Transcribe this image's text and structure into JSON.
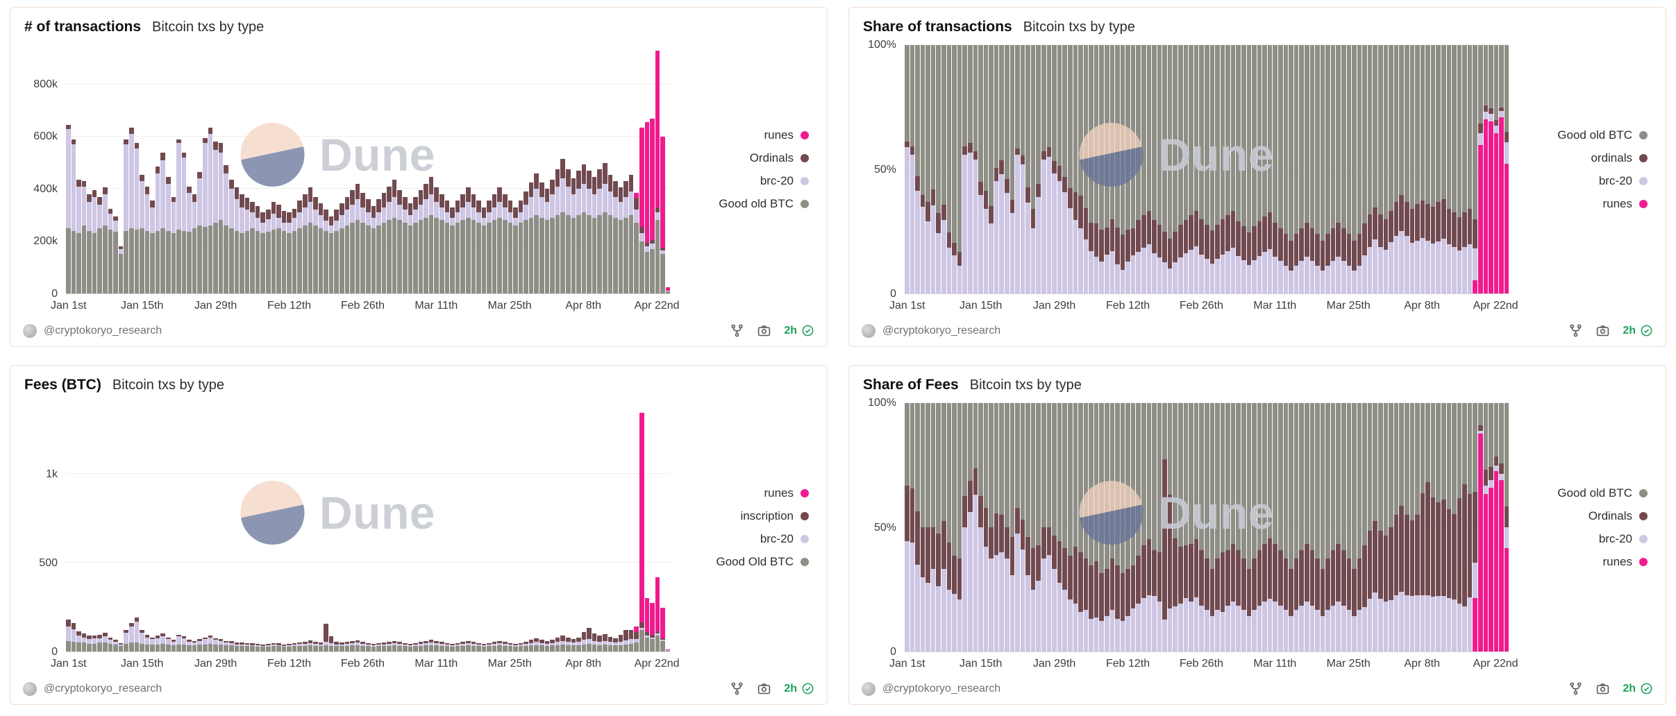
{
  "watermark": {
    "text": "Dune"
  },
  "footer": {
    "handle": "@cryptokoryo_research",
    "age": "2h"
  },
  "colors": {
    "good_old_btc": "#8e8e86",
    "brc20": "#cec6e4",
    "ordinals": "#714a50",
    "inscription": "#714a50",
    "runes": "#f01b8e",
    "panel_border": "#f3ddd1",
    "age_green": "#1ca05a"
  },
  "datasets": {
    "transactions_per_day_thousands": {
      "good_old_btc": [
        250,
        240,
        230,
        260,
        240,
        230,
        250,
        260,
        245,
        235,
        150,
        240,
        250,
        245,
        250,
        240,
        230,
        240,
        250,
        240,
        230,
        245,
        240,
        235,
        250,
        260,
        255,
        260,
        270,
        280,
        260,
        250,
        240,
        230,
        240,
        250,
        240,
        230,
        235,
        245,
        250,
        240,
        230,
        240,
        250,
        260,
        270,
        260,
        250,
        240,
        230,
        240,
        250,
        260,
        270,
        280,
        270,
        260,
        250,
        260,
        270,
        280,
        290,
        280,
        270,
        260,
        270,
        280,
        290,
        300,
        290,
        280,
        270,
        260,
        270,
        280,
        290,
        280,
        270,
        260,
        270,
        280,
        290,
        280,
        270,
        260,
        270,
        280,
        290,
        300,
        290,
        280,
        290,
        300,
        310,
        300,
        290,
        300,
        310,
        300,
        290,
        300,
        310,
        300,
        290,
        280,
        290,
        300,
        270,
        200,
        160,
        170,
        280,
        150,
        8
      ],
      "brc20": [
        380,
        330,
        180,
        150,
        110,
        140,
        90,
        120,
        60,
        45,
        20,
        330,
        360,
        310,
        180,
        140,
        100,
        220,
        260,
        180,
        120,
        330,
        280,
        150,
        100,
        180,
        320,
        350,
        280,
        260,
        200,
        150,
        120,
        100,
        80,
        60,
        50,
        40,
        50,
        60,
        40,
        30,
        40,
        50,
        60,
        70,
        80,
        60,
        50,
        40,
        30,
        40,
        50,
        60,
        70,
        80,
        60,
        50,
        40,
        50,
        60,
        70,
        80,
        60,
        50,
        40,
        50,
        60,
        70,
        80,
        60,
        50,
        40,
        30,
        40,
        50,
        60,
        50,
        40,
        30,
        40,
        50,
        60,
        50,
        40,
        30,
        40,
        60,
        80,
        100,
        80,
        70,
        90,
        110,
        130,
        110,
        90,
        100,
        110,
        100,
        90,
        100,
        110,
        90,
        80,
        70,
        80,
        90,
        50,
        30,
        20,
        20,
        30,
        15,
        2
      ],
      "ordinals": [
        15,
        20,
        25,
        20,
        30,
        25,
        30,
        25,
        20,
        15,
        10,
        20,
        25,
        20,
        25,
        30,
        25,
        25,
        30,
        25,
        20,
        15,
        20,
        25,
        30,
        25,
        20,
        25,
        30,
        35,
        30,
        35,
        45,
        50,
        45,
        40,
        45,
        40,
        35,
        45,
        50,
        45,
        40,
        35,
        45,
        50,
        55,
        50,
        45,
        40,
        35,
        40,
        45,
        50,
        55,
        60,
        55,
        50,
        45,
        50,
        55,
        60,
        65,
        55,
        50,
        45,
        50,
        55,
        60,
        65,
        55,
        50,
        45,
        40,
        45,
        50,
        55,
        50,
        45,
        40,
        45,
        50,
        55,
        50,
        45,
        40,
        45,
        50,
        55,
        60,
        55,
        50,
        55,
        65,
        75,
        65,
        60,
        70,
        75,
        70,
        65,
        75,
        80,
        65,
        60,
        55,
        60,
        65,
        45,
        25,
        15,
        15,
        20,
        10,
        1
      ],
      "runes": [
        0,
        0,
        0,
        0,
        0,
        0,
        0,
        0,
        0,
        0,
        0,
        0,
        0,
        0,
        0,
        0,
        0,
        0,
        0,
        0,
        0,
        0,
        0,
        0,
        0,
        0,
        0,
        0,
        0,
        0,
        0,
        0,
        0,
        0,
        0,
        0,
        0,
        0,
        0,
        0,
        0,
        0,
        0,
        0,
        0,
        0,
        0,
        0,
        0,
        0,
        0,
        0,
        0,
        0,
        0,
        0,
        0,
        0,
        0,
        0,
        0,
        0,
        0,
        0,
        0,
        0,
        0,
        0,
        0,
        0,
        0,
        0,
        0,
        0,
        0,
        0,
        0,
        0,
        0,
        0,
        0,
        0,
        0,
        0,
        0,
        0,
        0,
        0,
        0,
        0,
        0,
        0,
        0,
        0,
        0,
        0,
        0,
        0,
        0,
        0,
        0,
        0,
        0,
        0,
        0,
        0,
        0,
        0,
        20,
        380,
        460,
        465,
        600,
        425,
        12
      ]
    },
    "fees_btc_per_day": {
      "good_old_btc": [
        60,
        55,
        50,
        50,
        45,
        45,
        50,
        50,
        45,
        40,
        30,
        45,
        50,
        50,
        45,
        40,
        40,
        40,
        45,
        40,
        35,
        40,
        40,
        35,
        35,
        40,
        40,
        45,
        40,
        40,
        35,
        35,
        30,
        30,
        30,
        30,
        28,
        28,
        28,
        30,
        30,
        28,
        28,
        30,
        32,
        32,
        34,
        32,
        30,
        35,
        32,
        30,
        30,
        32,
        34,
        35,
        32,
        30,
        28,
        30,
        30,
        32,
        34,
        32,
        30,
        28,
        30,
        32,
        34,
        36,
        34,
        32,
        30,
        28,
        30,
        32,
        34,
        32,
        30,
        28,
        30,
        32,
        34,
        32,
        30,
        28,
        30,
        32,
        34,
        36,
        34,
        32,
        34,
        36,
        38,
        36,
        34,
        36,
        40,
        42,
        38,
        36,
        38,
        36,
        34,
        36,
        40,
        44,
        50,
        120,
        80,
        70,
        90,
        60,
        5
      ],
      "brc20": [
        80,
        70,
        40,
        30,
        25,
        30,
        25,
        35,
        20,
        15,
        10,
        60,
        90,
        120,
        60,
        40,
        30,
        35,
        40,
        30,
        20,
        45,
        35,
        20,
        15,
        20,
        30,
        35,
        25,
        20,
        15,
        12,
        10,
        8,
        8,
        6,
        6,
        5,
        6,
        8,
        6,
        5,
        6,
        8,
        10,
        12,
        14,
        12,
        10,
        20,
        15,
        10,
        10,
        12,
        12,
        14,
        10,
        8,
        6,
        8,
        8,
        10,
        12,
        10,
        8,
        6,
        8,
        10,
        12,
        14,
        12,
        10,
        8,
        6,
        8,
        10,
        12,
        10,
        8,
        6,
        8,
        10,
        12,
        10,
        8,
        6,
        8,
        10,
        14,
        18,
        14,
        12,
        14,
        18,
        22,
        18,
        16,
        18,
        25,
        30,
        22,
        20,
        22,
        18,
        16,
        18,
        22,
        26,
        20,
        15,
        10,
        8,
        10,
        6,
        1
      ],
      "inscription": [
        40,
        35,
        25,
        20,
        20,
        15,
        20,
        20,
        15,
        10,
        8,
        15,
        20,
        20,
        15,
        15,
        10,
        15,
        15,
        10,
        10,
        10,
        10,
        10,
        10,
        10,
        10,
        10,
        10,
        12,
        10,
        10,
        12,
        12,
        10,
        10,
        10,
        8,
        8,
        10,
        10,
        8,
        8,
        8,
        10,
        12,
        14,
        10,
        10,
        100,
        40,
        15,
        12,
        12,
        14,
        15,
        12,
        10,
        8,
        10,
        12,
        12,
        14,
        12,
        10,
        8,
        10,
        12,
        14,
        16,
        14,
        12,
        10,
        8,
        10,
        12,
        14,
        12,
        10,
        8,
        10,
        12,
        14,
        12,
        10,
        8,
        10,
        14,
        18,
        22,
        18,
        16,
        20,
        26,
        32,
        26,
        22,
        26,
        45,
        60,
        40,
        34,
        38,
        30,
        26,
        40,
        60,
        50,
        40,
        30,
        20,
        15,
        15,
        10,
        1
      ],
      "runes": [
        0,
        0,
        0,
        0,
        0,
        0,
        0,
        0,
        0,
        0,
        0,
        0,
        0,
        0,
        0,
        0,
        0,
        0,
        0,
        0,
        0,
        0,
        0,
        0,
        0,
        0,
        0,
        0,
        0,
        0,
        0,
        0,
        0,
        0,
        0,
        0,
        0,
        0,
        0,
        0,
        0,
        0,
        0,
        0,
        0,
        0,
        0,
        0,
        0,
        0,
        0,
        0,
        0,
        0,
        0,
        0,
        0,
        0,
        0,
        0,
        0,
        0,
        0,
        0,
        0,
        0,
        0,
        0,
        0,
        0,
        0,
        0,
        0,
        0,
        0,
        0,
        0,
        0,
        0,
        0,
        0,
        0,
        0,
        0,
        0,
        0,
        0,
        0,
        0,
        0,
        0,
        0,
        0,
        0,
        0,
        0,
        0,
        0,
        0,
        0,
        0,
        0,
        0,
        0,
        0,
        0,
        0,
        0,
        30,
        1180,
        190,
        180,
        305,
        170,
        5
      ]
    }
  },
  "chart_data": [
    {
      "title": "# of transactions",
      "subtitle": "Bitcoin txs by type",
      "type": "bar",
      "stacked": true,
      "normalized": false,
      "unit": "transactions per day (thousands)",
      "dataset": "transactions_per_day_thousands",
      "stack_order": [
        "good_old_btc",
        "brc20",
        "ordinals",
        "runes"
      ],
      "ymax": 950,
      "y_ticks": [
        {
          "v": 0,
          "label": "0"
        },
        {
          "v": 200,
          "label": "200k"
        },
        {
          "v": 400,
          "label": "400k"
        },
        {
          "v": 600,
          "label": "600k"
        },
        {
          "v": 800,
          "label": "800k"
        }
      ],
      "x_tick_labels": [
        "Jan 1st",
        "Jan 15th",
        "Jan 29th",
        "Feb 12th",
        "Feb 26th",
        "Mar 11th",
        "Mar 25th",
        "Apr 8th",
        "Apr 22nd"
      ],
      "x_tick_interval_bars": 14,
      "legend": [
        {
          "label": "runes",
          "series": "runes"
        },
        {
          "label": "Ordinals",
          "series": "ordinals"
        },
        {
          "label": "brc-20",
          "series": "brc20"
        },
        {
          "label": "Good old BTC",
          "series": "good_old_btc"
        }
      ]
    },
    {
      "title": "Share of transactions",
      "subtitle": "Bitcoin txs by type",
      "type": "bar",
      "stacked": true,
      "normalized": true,
      "unit": "percent of daily transactions",
      "dataset": "transactions_per_day_thousands",
      "stack_order": [
        "runes",
        "brc20",
        "ordinals",
        "good_old_btc"
      ],
      "ymax": 100,
      "y_ticks": [
        {
          "v": 0,
          "label": "0"
        },
        {
          "v": 50,
          "label": "50%"
        },
        {
          "v": 100,
          "label": "100%"
        }
      ],
      "x_tick_labels": [
        "Jan 1st",
        "Jan 15th",
        "Jan 29th",
        "Feb 12th",
        "Feb 26th",
        "Mar 11th",
        "Mar 25th",
        "Apr 8th",
        "Apr 22nd"
      ],
      "x_tick_interval_bars": 14,
      "legend": [
        {
          "label": "Good old BTC",
          "series": "good_old_btc"
        },
        {
          "label": "ordinals",
          "series": "ordinals"
        },
        {
          "label": "brc-20",
          "series": "brc20"
        },
        {
          "label": "runes",
          "series": "runes"
        }
      ]
    },
    {
      "title": "Fees (BTC)",
      "subtitle": "Bitcoin txs by type",
      "type": "bar",
      "stacked": true,
      "normalized": false,
      "unit": "BTC per day",
      "dataset": "fees_btc_per_day",
      "stack_order": [
        "good_old_btc",
        "brc20",
        "inscription",
        "runes"
      ],
      "ymax": 1400,
      "y_ticks": [
        {
          "v": 0,
          "label": "0"
        },
        {
          "v": 500,
          "label": "500"
        },
        {
          "v": 1000,
          "label": "1k"
        }
      ],
      "x_tick_labels": [
        "Jan 1st",
        "Jan 15th",
        "Jan 29th",
        "Feb 12th",
        "Feb 26th",
        "Mar 11th",
        "Mar 25th",
        "Apr 8th",
        "Apr 22nd"
      ],
      "x_tick_interval_bars": 14,
      "legend": [
        {
          "label": "runes",
          "series": "runes"
        },
        {
          "label": "inscription",
          "series": "inscription"
        },
        {
          "label": "brc-20",
          "series": "brc20"
        },
        {
          "label": "Good Old BTC",
          "series": "good_old_btc"
        }
      ]
    },
    {
      "title": "Share of Fees",
      "subtitle": "Bitcoin txs by type",
      "type": "bar",
      "stacked": true,
      "normalized": true,
      "unit": "percent of daily fees",
      "dataset": "fees_btc_per_day",
      "stack_order": [
        "runes",
        "brc20",
        "inscription",
        "good_old_btc"
      ],
      "ymax": 100,
      "y_ticks": [
        {
          "v": 0,
          "label": "0"
        },
        {
          "v": 50,
          "label": "50%"
        },
        {
          "v": 100,
          "label": "100%"
        }
      ],
      "x_tick_labels": [
        "Jan 1st",
        "Jan 15th",
        "Jan 29th",
        "Feb 12th",
        "Feb 26th",
        "Mar 11th",
        "Mar 25th",
        "Apr 8th",
        "Apr 22nd"
      ],
      "x_tick_interval_bars": 14,
      "legend": [
        {
          "label": "Good old BTC",
          "series": "good_old_btc"
        },
        {
          "label": "Ordinals",
          "series": "inscription"
        },
        {
          "label": "brc-20",
          "series": "brc20"
        },
        {
          "label": "runes",
          "series": "runes"
        }
      ]
    }
  ]
}
